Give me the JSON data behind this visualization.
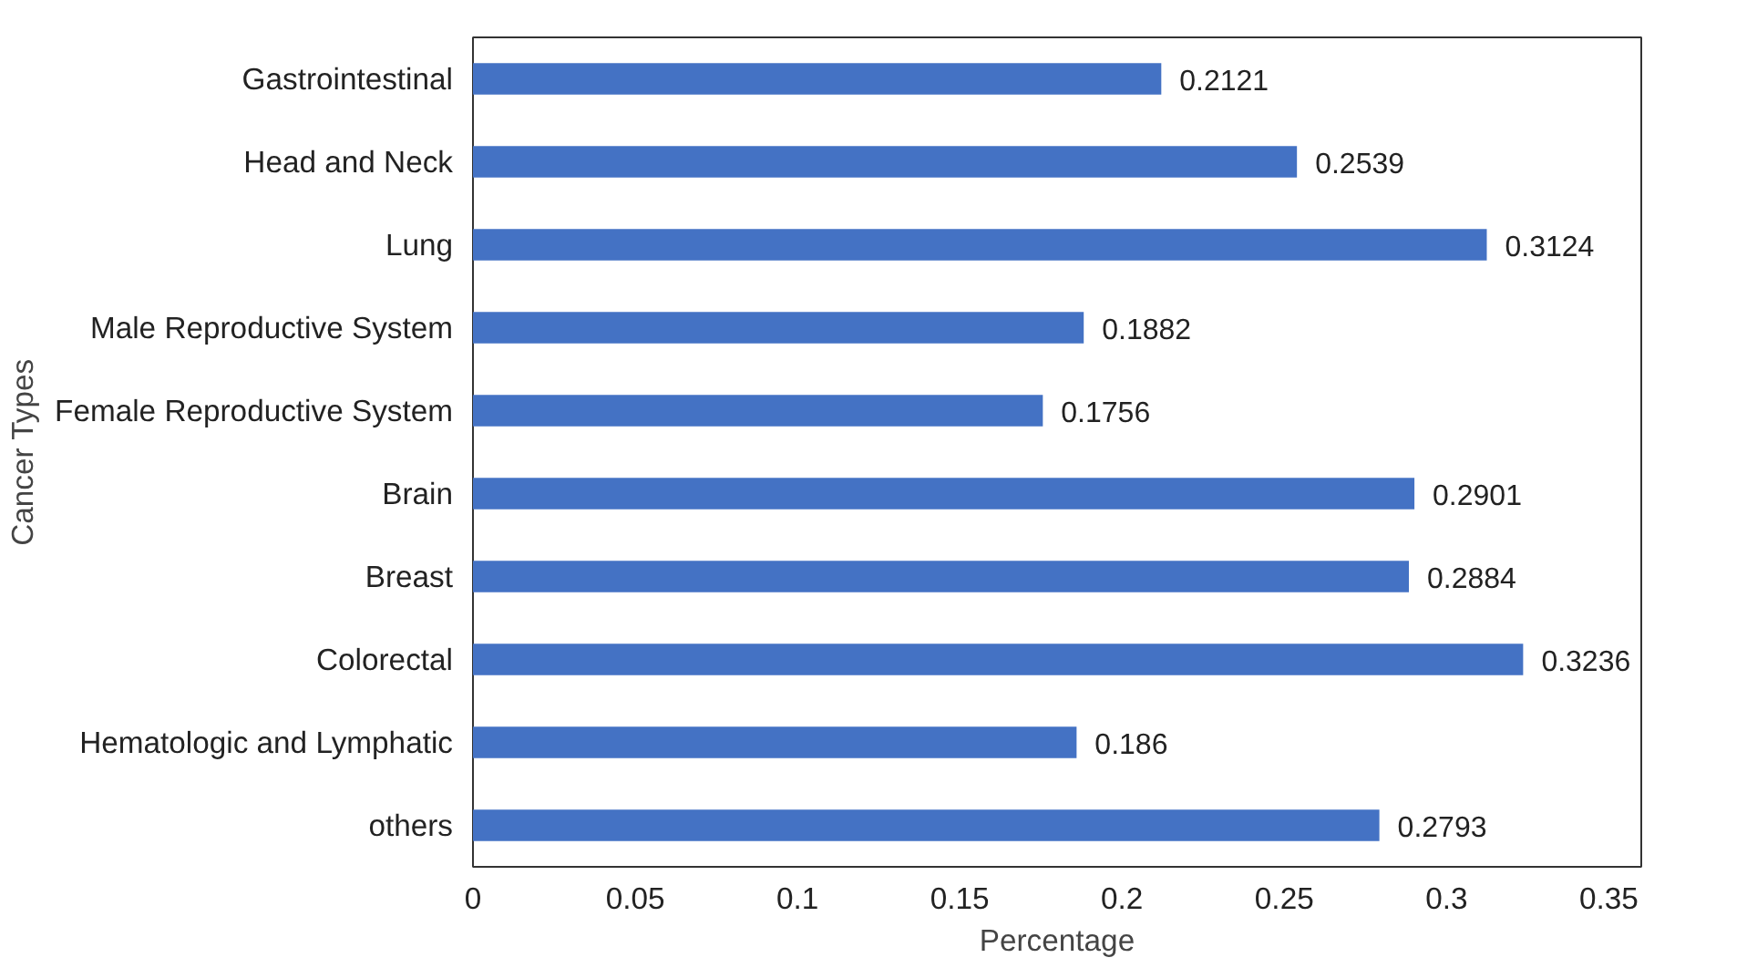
{
  "chart_data": {
    "type": "bar",
    "orientation": "horizontal",
    "xlabel": "Percentage",
    "ylabel": "Cancer Types",
    "categories": [
      "Gastrointestinal",
      "Head and Neck",
      "Lung",
      "Male Reproductive System",
      "Female Reproductive System",
      "Brain",
      "Breast",
      "Colorectal",
      "Hematologic and Lymphatic",
      "others"
    ],
    "values": [
      0.2121,
      0.2539,
      0.3124,
      0.1882,
      0.1756,
      0.2901,
      0.2884,
      0.3236,
      0.186,
      0.2793
    ],
    "color": "#4472c4",
    "xlim": [
      0,
      0.36
    ],
    "xticks": [
      0,
      0.05,
      0.1,
      0.15,
      0.2,
      0.25,
      0.3,
      0.35
    ],
    "data_labels": true,
    "grid": false
  }
}
